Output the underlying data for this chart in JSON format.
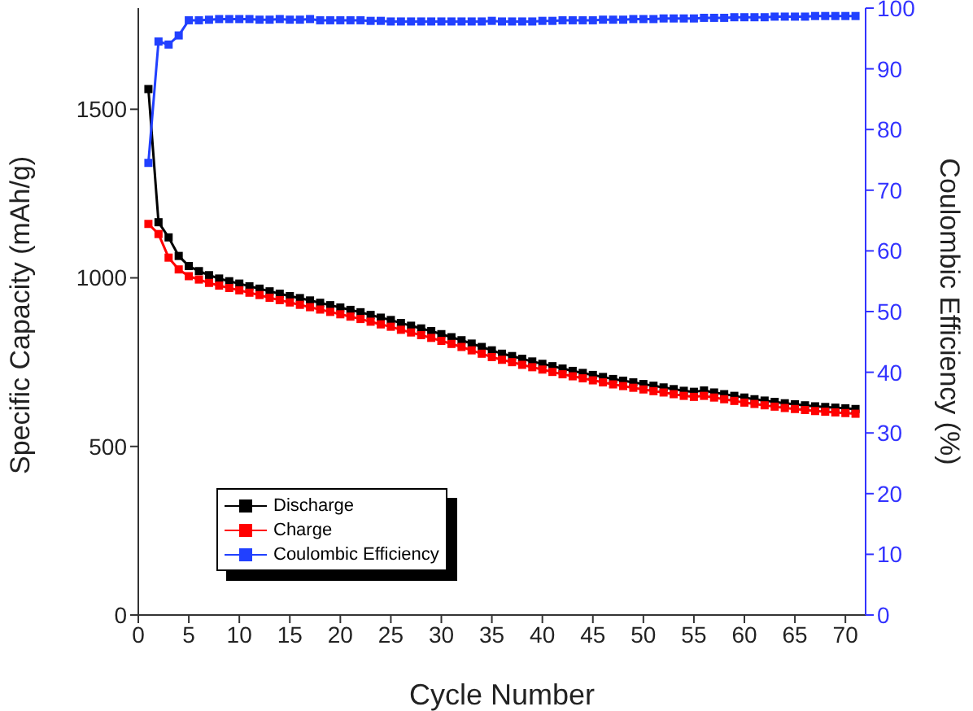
{
  "chart_data": {
    "type": "line",
    "xlabel": "Cycle Number",
    "ylabel": "Specific Capacity (mAh/g)",
    "y2label": "Coulombic Efficiency (%)",
    "x": [
      1,
      2,
      3,
      4,
      5,
      6,
      7,
      8,
      9,
      10,
      11,
      12,
      13,
      14,
      15,
      16,
      17,
      18,
      19,
      20,
      21,
      22,
      23,
      24,
      25,
      26,
      27,
      28,
      29,
      30,
      31,
      32,
      33,
      34,
      35,
      36,
      37,
      38,
      39,
      40,
      41,
      42,
      43,
      44,
      45,
      46,
      47,
      48,
      49,
      50,
      51,
      52,
      53,
      54,
      55,
      56,
      57,
      58,
      59,
      60,
      61,
      62,
      63,
      64,
      65,
      66,
      67,
      68,
      69,
      70,
      71
    ],
    "xlim": [
      0,
      72
    ],
    "xticks": [
      0,
      5,
      10,
      15,
      20,
      25,
      30,
      35,
      40,
      45,
      50,
      55,
      60,
      65,
      70
    ],
    "ylim": [
      0,
      1800
    ],
    "yticks": [
      0,
      500,
      1000,
      1500
    ],
    "y2lim": [
      0,
      100
    ],
    "y2ticks": [
      0,
      10,
      20,
      30,
      40,
      50,
      60,
      70,
      80,
      90,
      100
    ],
    "marker": "square",
    "line_style": "solid",
    "grid": false,
    "legend": "bottom left",
    "series": [
      {
        "name": "Discharge",
        "color": "#000000",
        "values": [
          1560,
          1165,
          1120,
          1065,
          1035,
          1020,
          1008,
          998,
          990,
          983,
          975,
          968,
          960,
          953,
          946,
          940,
          933,
          926,
          919,
          912,
          905,
          898,
          890,
          882,
          875,
          866,
          858,
          850,
          842,
          833,
          824,
          815,
          805,
          795,
          785,
          775,
          768,
          760,
          752,
          745,
          738,
          731,
          724,
          718,
          712,
          706,
          700,
          695,
          690,
          685,
          680,
          675,
          670,
          665,
          662,
          666,
          660,
          655,
          650,
          645,
          640,
          636,
          632,
          628,
          625,
          622,
          619,
          617,
          615,
          613,
          611
        ]
      },
      {
        "name": "Charge",
        "color": "#ff0000",
        "values": [
          1160,
          1130,
          1060,
          1025,
          1005,
          995,
          985,
          977,
          970,
          963,
          956,
          949,
          941,
          934,
          927,
          920,
          913,
          906,
          899,
          892,
          885,
          878,
          870,
          862,
          855,
          846,
          838,
          830,
          822,
          813,
          804,
          795,
          785,
          775,
          765,
          757,
          750,
          742,
          735,
          728,
          721,
          714,
          708,
          702,
          696,
          690,
          684,
          679,
          674,
          669,
          664,
          660,
          655,
          650,
          647,
          650,
          645,
          640,
          635,
          630,
          626,
          622,
          618,
          614,
          611,
          608,
          605,
          603,
          601,
          599,
          597
        ]
      },
      {
        "name": "Coulombic Efficiency",
        "color": "#2140ff",
        "axis": "y2",
        "values": [
          74.5,
          94.5,
          94,
          95.5,
          98,
          98,
          98.1,
          98.2,
          98.2,
          98.2,
          98.2,
          98.1,
          98.1,
          98.2,
          98.1,
          98.1,
          98.2,
          98,
          98,
          98,
          98,
          98,
          97.9,
          97.9,
          97.8,
          97.8,
          97.8,
          97.8,
          97.8,
          97.8,
          97.8,
          97.8,
          97.8,
          97.8,
          97.9,
          97.8,
          97.8,
          97.8,
          97.8,
          97.9,
          97.9,
          98,
          98,
          98,
          98,
          98.1,
          98.1,
          98.1,
          98.2,
          98.2,
          98.2,
          98.3,
          98.3,
          98.3,
          98.3,
          98.4,
          98.4,
          98.4,
          98.5,
          98.5,
          98.5,
          98.5,
          98.6,
          98.6,
          98.6,
          98.6,
          98.7,
          98.7,
          98.7,
          98.7,
          98.7
        ]
      }
    ]
  }
}
